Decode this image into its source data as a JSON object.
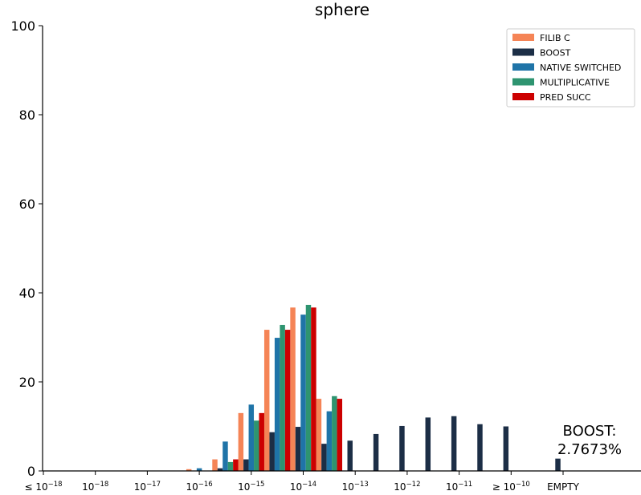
{
  "chart_data": {
    "type": "bar",
    "title": "sphere",
    "xlabel": "",
    "ylabel": "",
    "ylim": [
      0,
      100
    ],
    "yticks": [
      0,
      20,
      40,
      60,
      80,
      100
    ],
    "grid": false,
    "legend_position": "top-right",
    "x_tick_labels": [
      {
        "pre": "≤ ",
        "base": "10",
        "exp": "−18"
      },
      {
        "pre": "",
        "base": "10",
        "exp": "−18"
      },
      {
        "pre": "",
        "base": "10",
        "exp": "−17"
      },
      {
        "pre": "",
        "base": "10",
        "exp": "−16"
      },
      {
        "pre": "",
        "base": "10",
        "exp": "−15"
      },
      {
        "pre": "",
        "base": "10",
        "exp": "−14"
      },
      {
        "pre": "",
        "base": "10",
        "exp": "−13"
      },
      {
        "pre": "",
        "base": "10",
        "exp": "−12"
      },
      {
        "pre": "",
        "base": "10",
        "exp": "−11"
      },
      {
        "pre": "≥ ",
        "base": "10",
        "exp": "−10"
      },
      {
        "pre": "",
        "base": "EMPTY",
        "exp": ""
      }
    ],
    "bin_width_in_ticks": 0.5,
    "series": [
      {
        "name": "FILIB C",
        "color": "#f58456",
        "bins": [
          {
            "x": 3.0,
            "value": 0.4
          },
          {
            "x": 3.5,
            "value": 2.6
          },
          {
            "x": 4.0,
            "value": 13.0
          },
          {
            "x": 4.5,
            "value": 31.7
          },
          {
            "x": 5.0,
            "value": 36.7
          },
          {
            "x": 5.5,
            "value": 16.2
          }
        ]
      },
      {
        "name": "BOOST",
        "color": "#1c2e46",
        "bins": [
          {
            "x": 3.5,
            "value": 0.6
          },
          {
            "x": 4.0,
            "value": 2.6
          },
          {
            "x": 4.5,
            "value": 8.7
          },
          {
            "x": 5.0,
            "value": 9.9
          },
          {
            "x": 5.5,
            "value": 6.1
          },
          {
            "x": 6.0,
            "value": 6.8
          },
          {
            "x": 6.5,
            "value": 8.3
          },
          {
            "x": 7.0,
            "value": 10.1
          },
          {
            "x": 7.5,
            "value": 12.0
          },
          {
            "x": 8.0,
            "value": 12.3
          },
          {
            "x": 8.5,
            "value": 10.5
          },
          {
            "x": 9.0,
            "value": 10.0
          },
          {
            "x": 10.0,
            "value": 2.7673
          }
        ]
      },
      {
        "name": "NATIVE SWITCHED",
        "color": "#1f74a8",
        "bins": [
          {
            "x": 3.0,
            "value": 0.6
          },
          {
            "x": 3.5,
            "value": 6.6
          },
          {
            "x": 4.0,
            "value": 14.9
          },
          {
            "x": 4.5,
            "value": 29.9
          },
          {
            "x": 5.0,
            "value": 35.1
          },
          {
            "x": 5.5,
            "value": 13.4
          }
        ]
      },
      {
        "name": "MULTIPLICATIVE",
        "color": "#2e9470",
        "bins": [
          {
            "x": 3.5,
            "value": 2.0
          },
          {
            "x": 4.0,
            "value": 11.3
          },
          {
            "x": 4.5,
            "value": 32.8
          },
          {
            "x": 5.0,
            "value": 37.3
          },
          {
            "x": 5.5,
            "value": 16.8
          }
        ]
      },
      {
        "name": "PRED SUCC",
        "color": "#cc0000",
        "bins": [
          {
            "x": 3.5,
            "value": 2.6
          },
          {
            "x": 4.0,
            "value": 13.0
          },
          {
            "x": 4.5,
            "value": 31.7
          },
          {
            "x": 5.0,
            "value": 36.7
          },
          {
            "x": 5.5,
            "value": 16.2
          }
        ]
      }
    ],
    "annotation": {
      "line1": "BOOST:",
      "line2": "2.7673%"
    }
  }
}
